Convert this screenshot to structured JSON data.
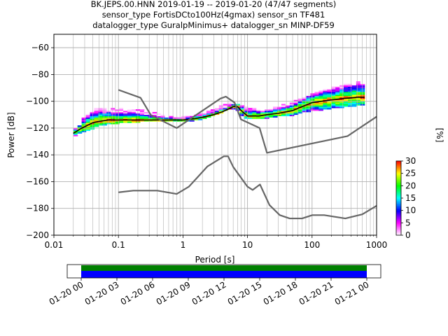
{
  "title_lines": [
    "BK.JEPS.00.HNN   2019-01-19 -- 2019-01-20  (47/47 segments)",
    "sensor_type FortisDCto100Hz(4gmax) sensor_sn TF481",
    "datalogger_type GuralpMinimus+ datalogger_sn MINP-DF59"
  ],
  "chart_data": {
    "type": "heatmap",
    "xlabel": "Period [s]",
    "ylabel": "Power [dB]",
    "xscale": "log",
    "xlim": [
      0.01,
      1000
    ],
    "ylim": [
      -200,
      -50
    ],
    "x_ticks": [
      0.01,
      0.1,
      1,
      10,
      100,
      1000
    ],
    "x_tick_labels": [
      "0.01",
      "0.1",
      "1",
      "10",
      "100",
      "1000"
    ],
    "y_ticks": [
      -200,
      -180,
      -160,
      -140,
      -120,
      -100,
      -80,
      -60
    ],
    "y_tick_labels": [
      "−200",
      "−180",
      "−160",
      "−140",
      "−120",
      "−100",
      "−80",
      "−60"
    ],
    "grid": true,
    "colorbar": {
      "label": "[%]",
      "range": [
        0,
        30
      ],
      "ticks": [
        0,
        5,
        10,
        15,
        20,
        25,
        30
      ],
      "tick_labels": [
        "0",
        "5",
        "10",
        "15",
        "20",
        "25",
        "30"
      ],
      "colors": [
        "#ffffff",
        "#ff00ff",
        "#0000ff",
        "#00ffff",
        "#00ff00",
        "#ffff00",
        "#ff0000"
      ]
    },
    "psd_bands": [
      {
        "period": 0.02,
        "low": -126,
        "high": -122
      },
      {
        "period": 0.025,
        "low": -124,
        "high": -118
      },
      {
        "period": 0.03,
        "low": -122,
        "high": -110
      },
      {
        "period": 0.04,
        "low": -120,
        "high": -106
      },
      {
        "period": 0.05,
        "low": -118,
        "high": -105
      },
      {
        "period": 0.07,
        "low": -117,
        "high": -105
      },
      {
        "period": 0.1,
        "low": -116,
        "high": -105
      },
      {
        "period": 0.15,
        "low": -116,
        "high": -106
      },
      {
        "period": 0.2,
        "low": -115,
        "high": -106
      },
      {
        "period": 0.3,
        "low": -115,
        "high": -108
      },
      {
        "period": 0.5,
        "low": -115,
        "high": -110
      },
      {
        "period": 0.7,
        "low": -115,
        "high": -112
      },
      {
        "period": 1,
        "low": -115,
        "high": -112
      },
      {
        "period": 1.5,
        "low": -114,
        "high": -111
      },
      {
        "period": 2,
        "low": -113,
        "high": -109
      },
      {
        "period": 3,
        "low": -110,
        "high": -106
      },
      {
        "period": 4,
        "low": -108,
        "high": -103
      },
      {
        "period": 5,
        "low": -106,
        "high": -102
      },
      {
        "period": 6,
        "low": -105,
        "high": -101
      },
      {
        "period": 8,
        "low": -110,
        "high": -103
      },
      {
        "period": 10,
        "low": -113,
        "high": -105
      },
      {
        "period": 15,
        "low": -113,
        "high": -106
      },
      {
        "period": 20,
        "low": -112,
        "high": -106
      },
      {
        "period": 30,
        "low": -111,
        "high": -104
      },
      {
        "period": 50,
        "low": -110,
        "high": -101
      },
      {
        "period": 70,
        "low": -108,
        "high": -98
      },
      {
        "period": 100,
        "low": -107,
        "high": -95
      },
      {
        "period": 150,
        "low": -106,
        "high": -92
      },
      {
        "period": 200,
        "low": -105,
        "high": -90
      },
      {
        "period": 300,
        "low": -104,
        "high": -88
      },
      {
        "period": 500,
        "low": -103,
        "high": -86
      },
      {
        "period": 650,
        "low": -102,
        "high": -85
      }
    ],
    "series": [
      {
        "role": "mode",
        "color": "#000000",
        "x": [
          0.02,
          0.025,
          0.03,
          0.04,
          0.05,
          0.07,
          0.1,
          0.2,
          0.3,
          0.5,
          1,
          1.5,
          2,
          3,
          4,
          5,
          6,
          7,
          8,
          10,
          15,
          20,
          30,
          50,
          70,
          100,
          200,
          300,
          500,
          650
        ],
        "y": [
          -124,
          -121,
          -119,
          -116,
          -115,
          -114,
          -114,
          -114,
          -114,
          -114,
          -114,
          -113,
          -112,
          -110,
          -108,
          -106,
          -104,
          -104,
          -107,
          -111,
          -111,
          -110,
          -109,
          -107,
          -104,
          -101,
          -99,
          -98,
          -97,
          -97
        ]
      },
      {
        "role": "nhnm",
        "color": "#666666",
        "x": [
          0.1,
          0.22,
          0.32,
          0.8,
          3.8,
          4.6,
          6.3,
          7.9,
          15.4,
          20,
          354.8,
          1000
        ],
        "y": [
          -91.5,
          -97.4,
          -110.5,
          -120,
          -98,
          -96.5,
          -101,
          -113.5,
          -120,
          -138.5,
          -126,
          -111.5
        ]
      },
      {
        "role": "nlnm",
        "color": "#666666",
        "x": [
          0.1,
          0.17,
          0.4,
          0.8,
          1.24,
          2.4,
          4.3,
          5,
          6,
          10,
          12,
          15.6,
          21.9,
          31.6,
          45,
          70,
          101,
          154,
          328,
          600,
          1000
        ],
        "y": [
          -168,
          -166.7,
          -166.7,
          -169.2,
          -163.7,
          -148.6,
          -141.1,
          -141.1,
          -149,
          -163.8,
          -166.2,
          -162.1,
          -177.5,
          -185,
          -187.5,
          -187.5,
          -185,
          -185,
          -187.5,
          -184.4,
          -178
        ]
      }
    ],
    "coverage": {
      "tick_labels": [
        "01-20 00",
        "01-20 03",
        "01-20 06",
        "01-20 09",
        "01-20 12",
        "01-20 15",
        "01-20 18",
        "01-20 21",
        "01-21 00"
      ],
      "bar_colors": {
        "top": "#008000",
        "bottom": "#0000ff"
      }
    }
  }
}
